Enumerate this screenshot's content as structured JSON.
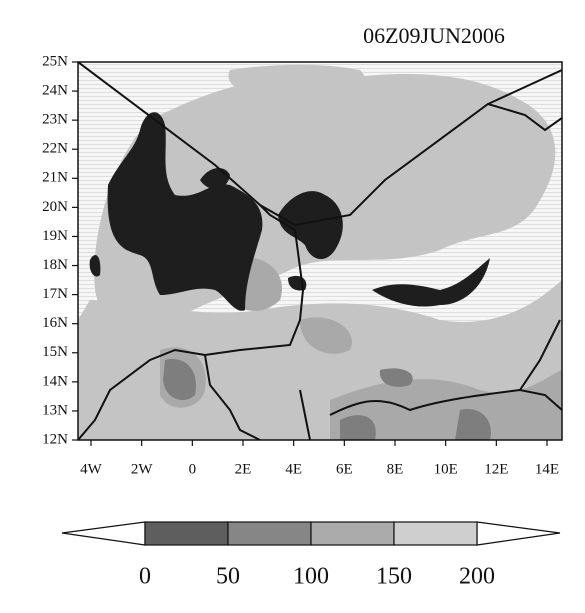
{
  "map": {
    "title": "06Z09JUN2006",
    "lat_labels": [
      "25N",
      "24N",
      "23N",
      "22N",
      "21N",
      "20N",
      "19N",
      "18N",
      "17N",
      "16N",
      "15N",
      "14N",
      "13N",
      "12N"
    ],
    "lon_labels": [
      "4W",
      "2W",
      "0",
      "2E",
      "4E",
      "6E",
      "8E",
      "10E",
      "12E",
      "14E"
    ]
  },
  "colorbar": {
    "ticks": [
      0,
      50,
      100,
      150,
      200
    ],
    "colors": [
      "#5e5e5e",
      "#868686",
      "#ababab",
      "#cfcfcf"
    ]
  }
}
